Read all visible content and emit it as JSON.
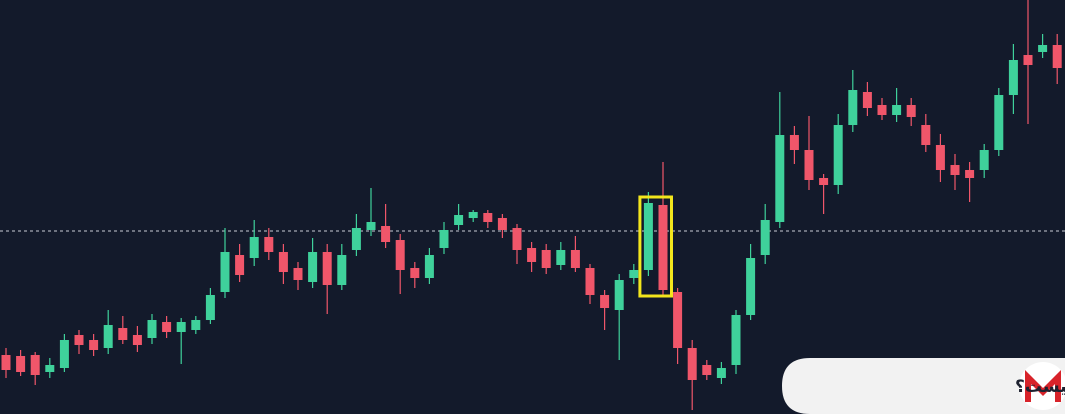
{
  "chart_data": {
    "type": "candlestick",
    "open": [
      59,
      58,
      59,
      42,
      46,
      79,
      74,
      66,
      86,
      79,
      76,
      92,
      82,
      84,
      94,
      122,
      159,
      156,
      177,
      162,
      146,
      132,
      162,
      129,
      164,
      184,
      188,
      174,
      146,
      136,
      166,
      189,
      196,
      201,
      196,
      186,
      166,
      164,
      149,
      164,
      146,
      119,
      104,
      136,
      144,
      209,
      122,
      66,
      49,
      36,
      49,
      99,
      159,
      192,
      279,
      264,
      236,
      229,
      289,
      322,
      309,
      299,
      309,
      289,
      269,
      249,
      244,
      244,
      264,
      319,
      359,
      362,
      369
    ],
    "high": [
      66,
      64,
      62,
      56,
      80,
      84,
      80,
      104,
      98,
      88,
      100,
      98,
      96,
      98,
      126,
      186,
      170,
      194,
      186,
      170,
      152,
      176,
      170,
      170,
      200,
      226,
      210,
      180,
      152,
      166,
      192,
      210,
      204,
      204,
      200,
      190,
      172,
      170,
      172,
      178,
      150,
      124,
      140,
      150,
      222,
      252,
      126,
      74,
      54,
      52,
      104,
      170,
      210,
      322,
      288,
      298,
      240,
      300,
      344,
      332,
      316,
      326,
      316,
      300,
      280,
      260,
      252,
      270,
      326,
      370,
      414,
      380,
      380
    ],
    "low": [
      36,
      38,
      29,
      36,
      42,
      60,
      58,
      60,
      70,
      62,
      70,
      76,
      50,
      80,
      90,
      116,
      132,
      148,
      154,
      130,
      124,
      126,
      100,
      124,
      158,
      178,
      166,
      120,
      126,
      130,
      160,
      184,
      192,
      186,
      176,
      150,
      142,
      140,
      144,
      142,
      110,
      84,
      54,
      130,
      138,
      118,
      50,
      4,
      34,
      30,
      40,
      94,
      150,
      186,
      250,
      224,
      200,
      220,
      282,
      298,
      294,
      292,
      288,
      262,
      232,
      224,
      212,
      236,
      258,
      300,
      290,
      356,
      330
    ],
    "close": [
      44,
      42,
      39,
      49,
      74,
      69,
      64,
      89,
      74,
      69,
      94,
      82,
      92,
      94,
      119,
      162,
      139,
      177,
      162,
      142,
      134,
      162,
      129,
      159,
      186,
      192,
      172,
      144,
      136,
      159,
      184,
      199,
      202,
      192,
      184,
      164,
      152,
      146,
      164,
      146,
      119,
      106,
      134,
      144,
      211,
      124,
      66,
      34,
      39,
      46,
      99,
      156,
      194,
      279,
      264,
      234,
      229,
      289,
      324,
      306,
      299,
      309,
      297,
      269,
      244,
      239,
      236,
      264,
      319,
      354,
      349,
      369,
      346
    ],
    "up_color": "#3fd19b",
    "down_color": "#f0566a",
    "ylim": [
      0,
      414
    ],
    "reference_line": 183,
    "highlight": {
      "candles": [
        44,
        45
      ],
      "color": "#f3e61c"
    },
    "caption": "سینگل کندل اوردر بلاک چیست؟"
  }
}
